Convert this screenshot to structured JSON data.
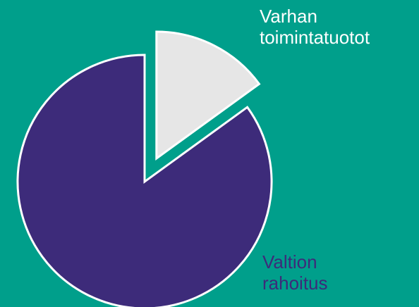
{
  "chart_data": {
    "type": "pie",
    "categories": [
      "Varhan toimintatuotot",
      "Valtion rahoitus"
    ],
    "values": [
      15,
      85
    ],
    "colors": [
      "#e6e6e6",
      "#3d2b7a"
    ]
  }
}
